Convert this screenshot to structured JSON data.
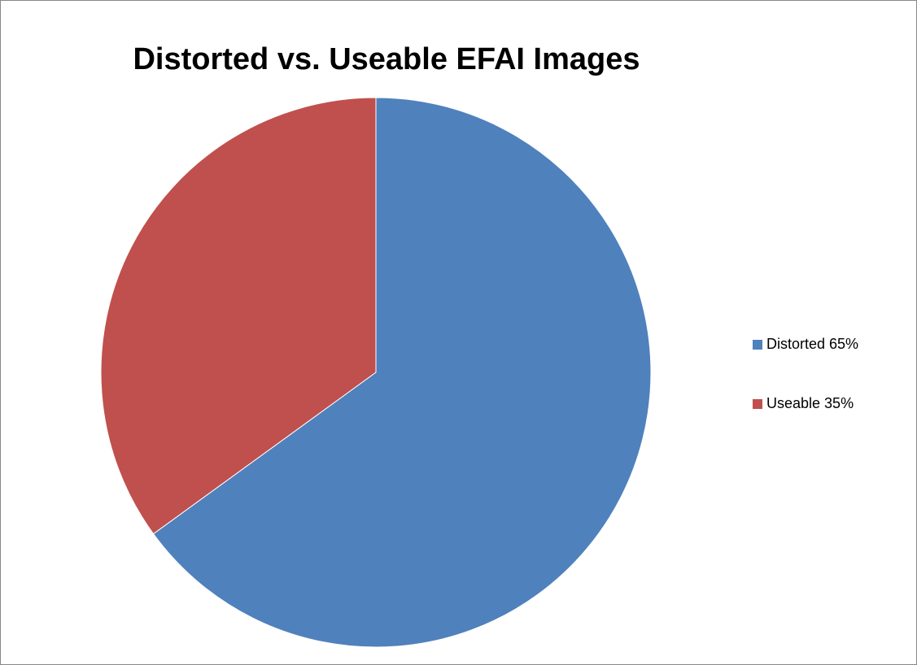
{
  "chart_data": {
    "type": "pie",
    "title": "Distorted vs. Useable EFAI Images",
    "categories": [
      "Distorted 65%",
      "Useable 35%"
    ],
    "values": [
      65,
      35
    ],
    "colors": [
      "#4f81bd",
      "#c0504d"
    ],
    "legend": "right"
  }
}
